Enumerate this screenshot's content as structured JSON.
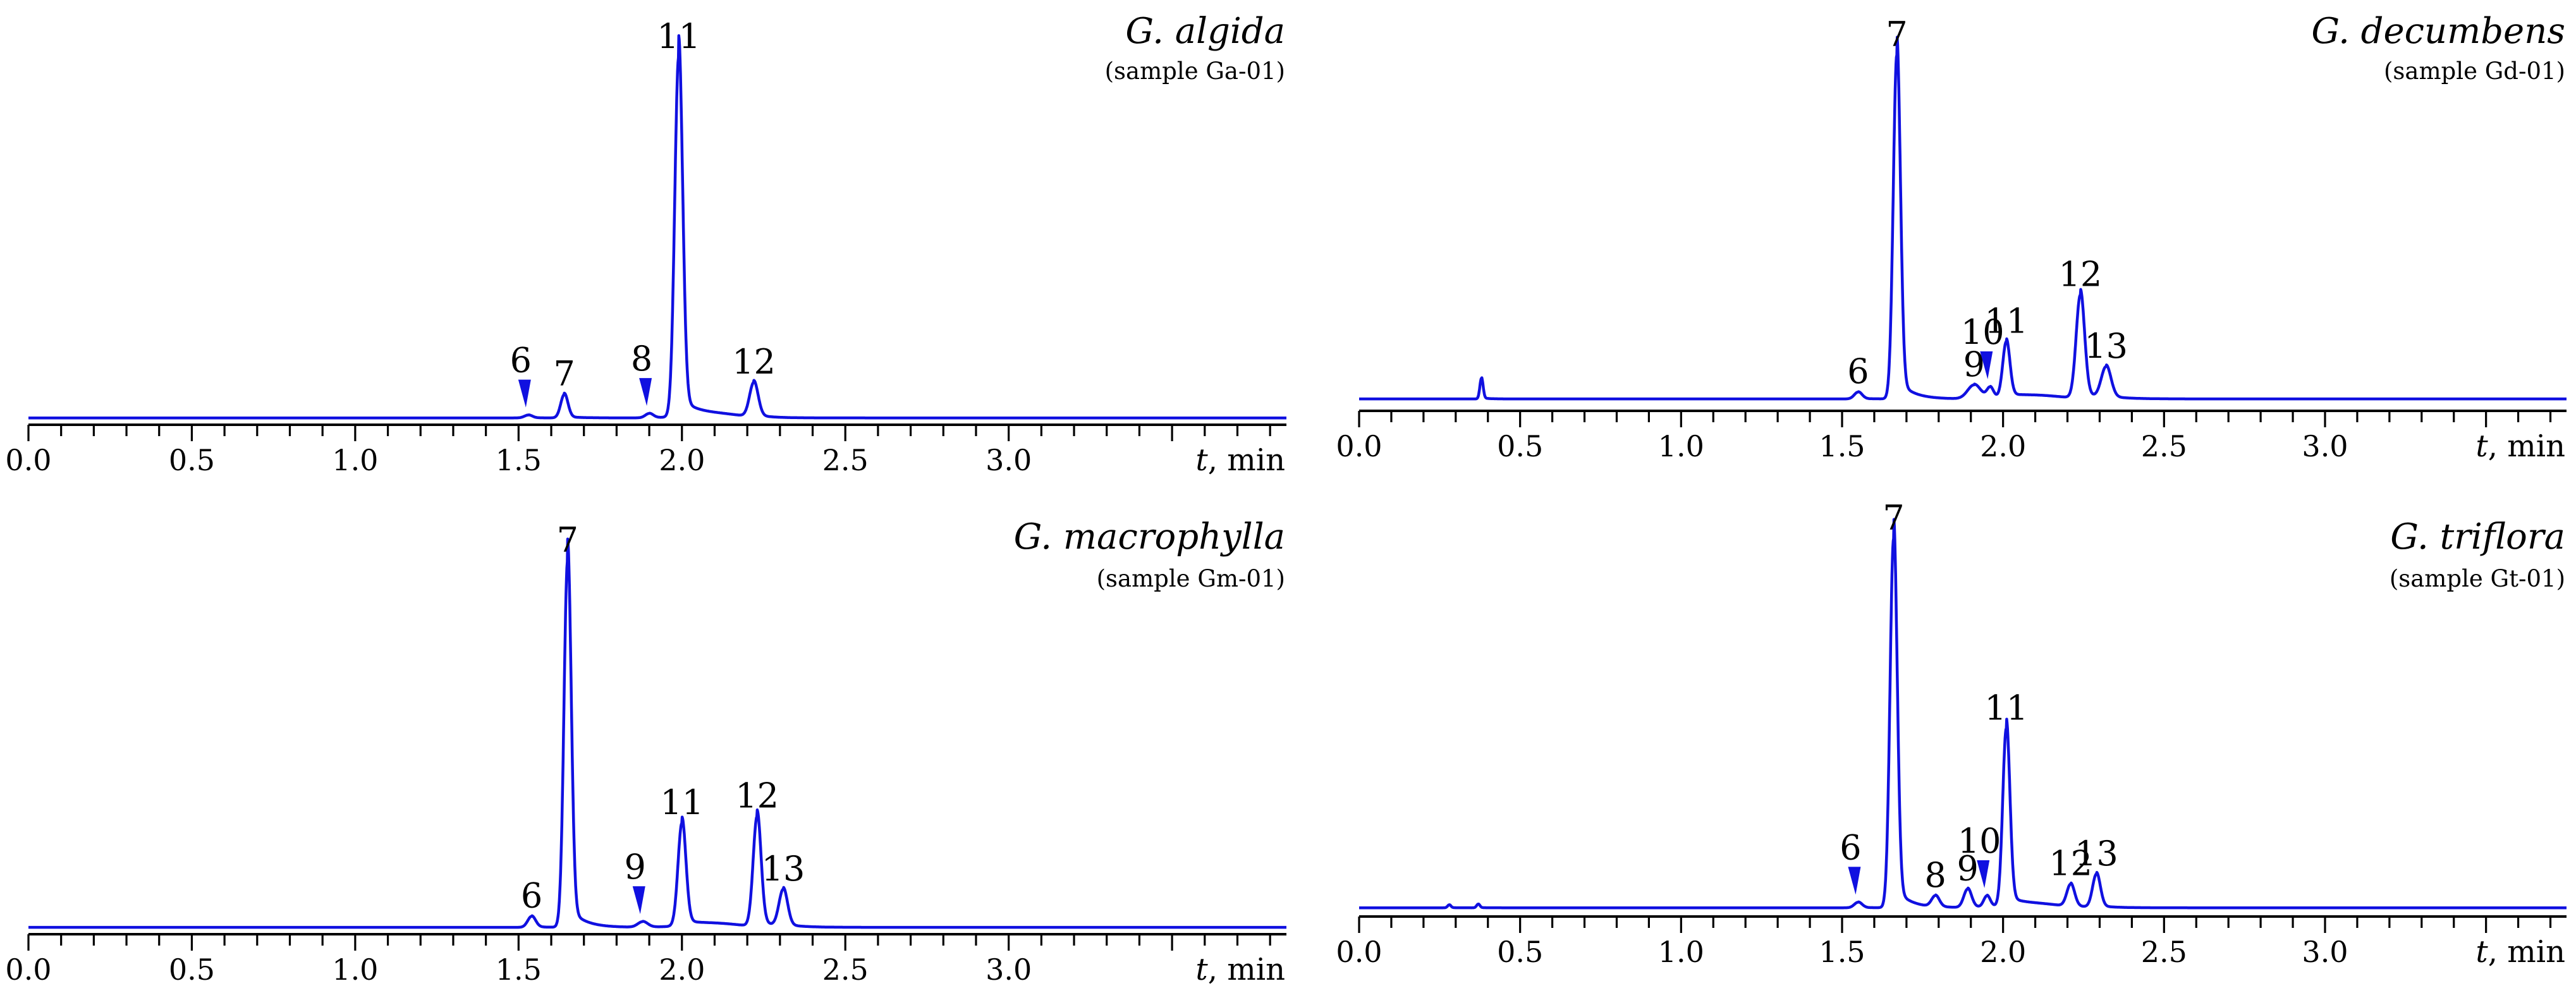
{
  "chart_data": [
    {
      "type": "line",
      "title": "G. algida",
      "subtitle": "(sample Ga-01)",
      "xlabel_var": "t",
      "xlabel_unit": ", min",
      "xlim": [
        0,
        3.85
      ],
      "ylim": [
        0,
        1.0
      ],
      "ticks": [
        "0.0",
        "0.5",
        "1.0",
        "1.5",
        "2.0",
        "2.5",
        "3.0"
      ],
      "tick_values": [
        0.0,
        0.5,
        1.0,
        1.5,
        2.0,
        2.5,
        3.0
      ],
      "baseline": 0.005,
      "peaks": [
        {
          "label": "6",
          "t": 1.53,
          "height": 0.008,
          "width": 0.012,
          "arrow": true
        },
        {
          "label": "7",
          "t": 1.64,
          "height": 0.065,
          "width": 0.011,
          "arrow": false
        },
        {
          "label": "8",
          "t": 1.9,
          "height": 0.012,
          "width": 0.012,
          "arrow": true
        },
        {
          "label": "11",
          "t": 1.99,
          "height": 1.0,
          "width": 0.012,
          "arrow": false
        },
        {
          "label": "12",
          "t": 2.22,
          "height": 0.095,
          "width": 0.013,
          "arrow": false
        }
      ],
      "extra": []
    },
    {
      "type": "line",
      "title": "G. decumbens",
      "subtitle": "(sample Gd-01)",
      "xlabel_var": "t",
      "xlabel_unit": ", min",
      "xlim": [
        0,
        3.75
      ],
      "ylim": [
        0,
        1.0
      ],
      "ticks": [
        "0.0",
        "0.5",
        "1.0",
        "1.5",
        "2.0",
        "2.5",
        "3.0"
      ],
      "tick_values": [
        0.0,
        0.5,
        1.0,
        1.5,
        2.0,
        2.5,
        3.0
      ],
      "baseline": 0.02,
      "peaks": [
        {
          "label": "6",
          "t": 1.55,
          "height": 0.02,
          "width": 0.012,
          "arrow": false
        },
        {
          "label": "7",
          "t": 1.67,
          "height": 1.0,
          "width": 0.011,
          "arrow": false
        },
        {
          "label": "9",
          "t": 1.91,
          "height": 0.04,
          "width": 0.02,
          "arrow": false
        },
        {
          "label": "10",
          "t": 1.96,
          "height": 0.03,
          "width": 0.01,
          "arrow": true
        },
        {
          "label": "11",
          "t": 2.01,
          "height": 0.16,
          "width": 0.011,
          "arrow": false
        },
        {
          "label": "12",
          "t": 2.24,
          "height": 0.3,
          "width": 0.013,
          "arrow": false
        },
        {
          "label": "13",
          "t": 2.32,
          "height": 0.09,
          "width": 0.015,
          "arrow": false
        }
      ],
      "extra": [
        {
          "t": 0.38,
          "height": 0.06,
          "width": 0.005
        }
      ]
    },
    {
      "type": "line",
      "title": "G. macrophylla",
      "subtitle": "(sample Gm-01)",
      "xlabel_var": "t",
      "xlabel_unit": ", min",
      "xlim": [
        0,
        3.85
      ],
      "ylim": [
        0,
        1.0
      ],
      "ticks": [
        "0.0",
        "0.5",
        "1.0",
        "1.5",
        "2.0",
        "2.5",
        "3.0"
      ],
      "tick_values": [
        0.0,
        0.5,
        1.0,
        1.5,
        2.0,
        2.5,
        3.0
      ],
      "baseline": 0.005,
      "peaks": [
        {
          "label": "6",
          "t": 1.54,
          "height": 0.03,
          "width": 0.012,
          "arrow": false
        },
        {
          "label": "7",
          "t": 1.65,
          "height": 1.0,
          "width": 0.011,
          "arrow": false
        },
        {
          "label": "9",
          "t": 1.88,
          "height": 0.015,
          "width": 0.015,
          "arrow": true
        },
        {
          "label": "11",
          "t": 2.0,
          "height": 0.28,
          "width": 0.012,
          "arrow": false
        },
        {
          "label": "12",
          "t": 2.23,
          "height": 0.3,
          "width": 0.012,
          "arrow": false
        },
        {
          "label": "13",
          "t": 2.31,
          "height": 0.1,
          "width": 0.013,
          "arrow": false
        }
      ],
      "extra": []
    },
    {
      "type": "line",
      "title": "G. triflora",
      "subtitle": "(sample Gt-01)",
      "xlabel_var": "t",
      "xlabel_unit": ", min",
      "xlim": [
        0,
        3.75
      ],
      "ylim": [
        0,
        1.0
      ],
      "ticks": [
        "0.0",
        "0.5",
        "1.0",
        "1.5",
        "2.0",
        "2.5",
        "3.0"
      ],
      "tick_values": [
        0.0,
        0.5,
        1.0,
        1.5,
        2.0,
        2.5,
        3.0
      ],
      "baseline": 0.01,
      "peaks": [
        {
          "label": "6",
          "t": 1.55,
          "height": 0.015,
          "width": 0.012,
          "arrow": true
        },
        {
          "label": "7",
          "t": 1.66,
          "height": 1.0,
          "width": 0.011,
          "arrow": false
        },
        {
          "label": "8",
          "t": 1.79,
          "height": 0.03,
          "width": 0.012,
          "arrow": false
        },
        {
          "label": "9",
          "t": 1.89,
          "height": 0.05,
          "width": 0.012,
          "arrow": false
        },
        {
          "label": "10",
          "t": 1.95,
          "height": 0.03,
          "width": 0.01,
          "arrow": true
        },
        {
          "label": "11",
          "t": 2.01,
          "height": 0.48,
          "width": 0.011,
          "arrow": false
        },
        {
          "label": "12",
          "t": 2.21,
          "height": 0.06,
          "width": 0.012,
          "arrow": false
        },
        {
          "label": "13",
          "t": 2.29,
          "height": 0.09,
          "width": 0.012,
          "arrow": false
        }
      ],
      "extra": [
        {
          "t": 0.28,
          "height": 0.008,
          "width": 0.005
        },
        {
          "t": 0.37,
          "height": 0.01,
          "width": 0.005
        }
      ]
    }
  ]
}
